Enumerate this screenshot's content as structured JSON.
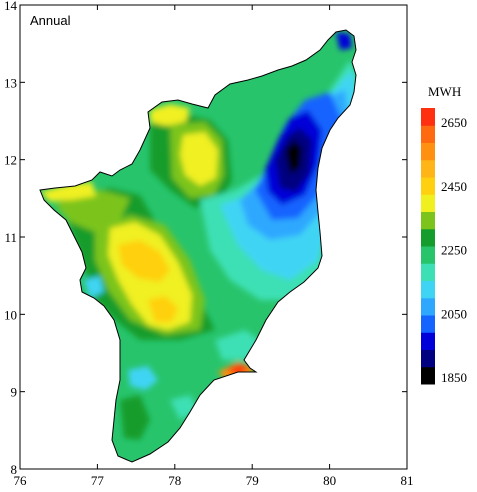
{
  "map": {
    "title": "Annual",
    "x_ticks": [
      "76",
      "77",
      "78",
      "79",
      "80",
      "81"
    ],
    "y_ticks": [
      "8",
      "9",
      "10",
      "11",
      "12",
      "13",
      "14"
    ],
    "colorbar": {
      "unit": "MWH",
      "labels": [
        "2650",
        "2450",
        "2250",
        "2050",
        "1850"
      ],
      "colors": [
        "#000000",
        "#000080",
        "#0000d8",
        "#1464ff",
        "#2ea8ff",
        "#40d4f4",
        "#3ce0b4",
        "#28c46c",
        "#149c2c",
        "#7cc41c",
        "#f0f020",
        "#ffd010",
        "#ffb418",
        "#ff9010",
        "#ff6a10",
        "#ff3010"
      ]
    }
  }
}
